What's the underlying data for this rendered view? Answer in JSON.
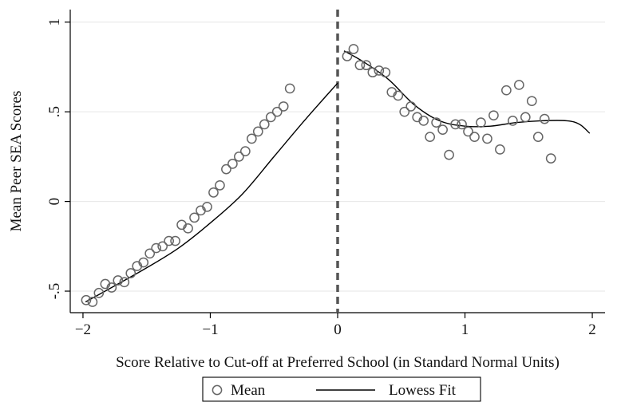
{
  "chart_data": {
    "type": "scatter",
    "title": "",
    "xlabel": "Score Relative to Cut-off at Preferred School (in Standard Normal Units)",
    "ylabel": "Mean Peer SEA Scores",
    "xlim": [
      -2.1,
      2.1
    ],
    "ylim": [
      -0.62,
      1.07
    ],
    "x_ticks": [
      -2,
      -1,
      0,
      1,
      2
    ],
    "x_tick_labels": [
      "−2",
      "−1",
      "0",
      "1",
      "2"
    ],
    "y_ticks": [
      -0.5,
      0,
      0.5,
      1
    ],
    "y_tick_labels": [
      "-.5",
      "0",
      ".5",
      "1"
    ],
    "grid": true,
    "cutoff_line": {
      "x": 0,
      "style": "dashed"
    },
    "legend": {
      "position": "bottom-center",
      "entries": [
        "Mean",
        "Lowess Fit"
      ]
    },
    "series": [
      {
        "name": "Mean",
        "kind": "scatter",
        "x": [
          -1.975,
          -1.925,
          -1.875,
          -1.825,
          -1.775,
          -1.725,
          -1.675,
          -1.625,
          -1.575,
          -1.525,
          -1.475,
          -1.425,
          -1.375,
          -1.325,
          -1.275,
          -1.225,
          -1.175,
          -1.125,
          -1.075,
          -1.025,
          -0.975,
          -0.925,
          -0.875,
          -0.825,
          -0.775,
          -0.725,
          -0.675,
          -0.625,
          -0.575,
          -0.525,
          -0.475,
          -0.425,
          -0.375,
          -0.325,
          -0.275,
          -0.225,
          -0.175,
          -0.125,
          -0.075,
          -0.025,
          0.025,
          0.075,
          0.125,
          0.175,
          0.225,
          0.275,
          0.325,
          0.375,
          0.425,
          0.475,
          0.525,
          0.575,
          0.625,
          0.675,
          0.725,
          0.775,
          0.825,
          0.875,
          0.925,
          0.975,
          1.025,
          1.075,
          1.125,
          1.175,
          1.225,
          1.275,
          1.325,
          1.375,
          1.425,
          1.475,
          1.525,
          1.575,
          1.625,
          1.675,
          1.725,
          1.775,
          1.825,
          1.875,
          1.925,
          1.975
        ],
        "y": [
          -0.55,
          -0.56,
          -0.51,
          -0.46,
          -0.48,
          -0.44,
          -0.45,
          -0.4,
          -0.36,
          -0.34,
          -0.29,
          -0.26,
          -0.25,
          -0.22,
          -0.22,
          -0.13,
          -0.15,
          -0.09,
          -0.05,
          -0.03,
          0.05,
          0.09,
          0.18,
          0.21,
          0.25,
          0.28,
          0.35,
          0.39,
          0.43,
          0.47,
          0.5,
          0.53,
          0.63,
          null,
          null,
          null,
          null,
          null,
          null,
          null,
          null,
          0.81,
          0.85,
          0.76,
          0.76,
          0.72,
          0.73,
          0.72,
          0.61,
          0.59,
          0.5,
          0.53,
          0.47,
          0.45,
          0.36,
          0.44,
          0.4,
          0.26,
          0.43,
          0.43,
          0.39,
          0.36,
          0.44,
          0.35,
          0.48,
          0.29,
          0.62,
          0.45,
          0.65,
          0.47,
          0.56,
          0.36,
          0.46,
          0.24,
          null,
          null,
          null,
          null,
          null,
          null
        ]
      },
      {
        "name": "Lowess Fit",
        "kind": "line",
        "segments": [
          {
            "x": [
              -1.98,
              -1.75,
              -1.5,
              -1.25,
              -1.0,
              -0.75,
              -0.5,
              -0.25,
              0.0
            ],
            "y": [
              -0.56,
              -0.47,
              -0.37,
              -0.26,
              -0.12,
              0.04,
              0.25,
              0.46,
              0.66
            ]
          },
          {
            "x": [
              0.05,
              0.2,
              0.4,
              0.6,
              0.8,
              1.0,
              1.2,
              1.4,
              1.6,
              1.8,
              1.9,
              1.98
            ],
            "y": [
              0.84,
              0.78,
              0.68,
              0.54,
              0.45,
              0.42,
              0.42,
              0.44,
              0.45,
              0.45,
              0.43,
              0.38
            ]
          }
        ]
      }
    ]
  }
}
